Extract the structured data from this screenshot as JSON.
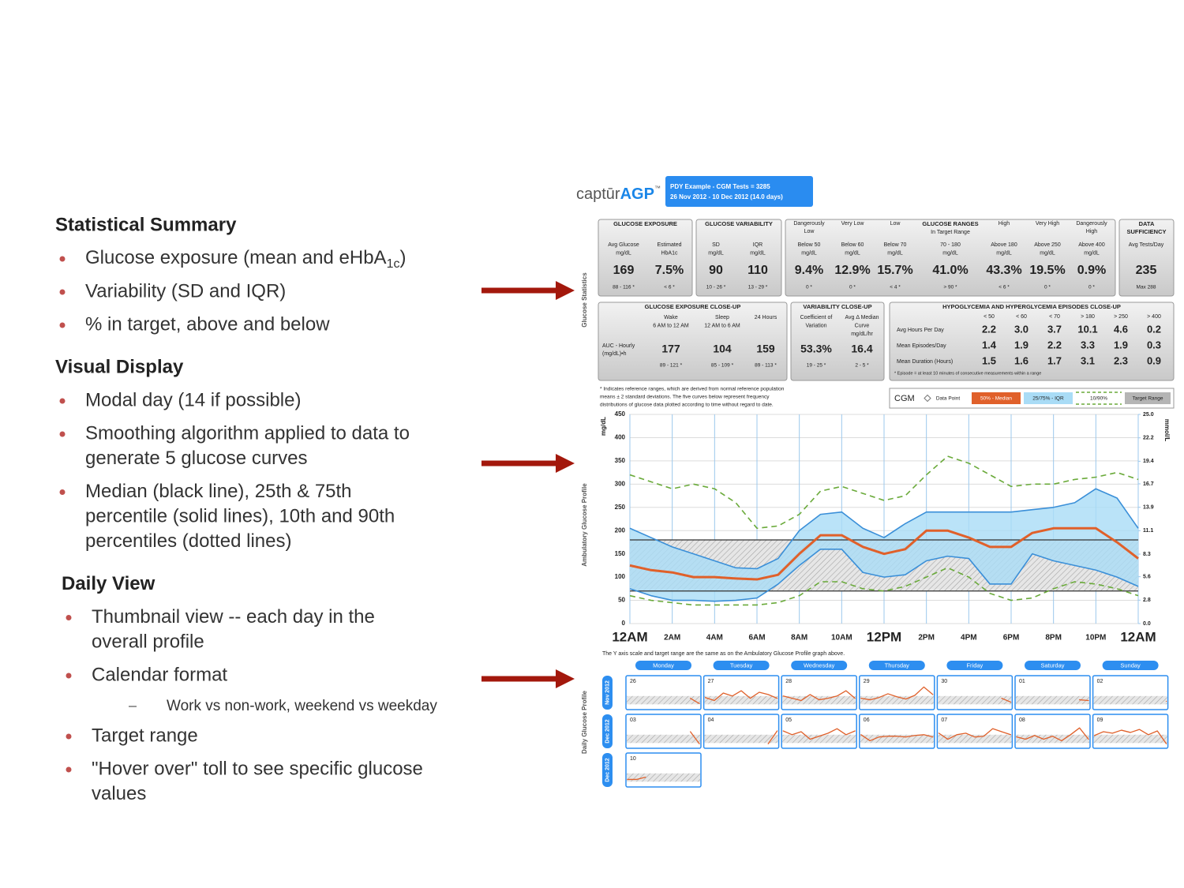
{
  "slide": {
    "sections": [
      {
        "heading": "Statistical Summary",
        "items": [
          {
            "lines": [
              "Glucose exposure (mean and eHbA"
            ],
            "sub": "1c",
            "tail": ")"
          },
          {
            "lines": [
              "Variability (SD and IQR)"
            ]
          },
          {
            "lines": [
              "% in target, above and below"
            ]
          }
        ]
      },
      {
        "heading": "Visual Display",
        "items": [
          {
            "lines": [
              "Modal day (14 if possible)"
            ]
          },
          {
            "lines": [
              "Smoothing algorithm applied to data to",
              "generate 5 glucose curves"
            ]
          },
          {
            "lines": [
              "Median (black line), 25th & 75th",
              "percentile (solid lines), 10th and 90th",
              "percentiles (dotted lines)"
            ]
          }
        ]
      },
      {
        "heading": "Daily View",
        "items": [
          {
            "lines": [
              "Thumbnail view -- each day in the",
              "overall profile"
            ]
          },
          {
            "lines": [
              "Calendar format"
            ],
            "subitems": [
              "Work vs non-work, weekend vs weekday"
            ]
          },
          {
            "lines": [
              "Target range"
            ]
          },
          {
            "lines": [
              "\"Hover over\" toll to see specific glucose",
              "values"
            ]
          }
        ]
      }
    ]
  },
  "report": {
    "logo": {
      "text": "captūr",
      "brand": "AGP",
      "tm": "™"
    },
    "header_box": [
      "PDY Example - CGM Tests = 3285",
      "26 Nov 2012 - 10 Dec 2012 (14.0 days)"
    ],
    "side_labels": [
      "Glucose Statistics",
      "Ambulatory Glucose Profile",
      "Daily Glucose Profile"
    ],
    "stats_row1": [
      {
        "title": [
          "GLUCOSE EXPOSURE"
        ],
        "columns": [
          {
            "label": [
              "Avg Glucose",
              "mg/dL"
            ],
            "value": "169",
            "range": "88 - 116 *"
          },
          {
            "label": [
              "Estimated",
              "HbA1c"
            ],
            "value": "7.5%",
            "range": "< 6 *"
          }
        ]
      },
      {
        "title": [
          "GLUCOSE VARIABILITY"
        ],
        "columns": [
          {
            "label": [
              "SD",
              "mg/dL"
            ],
            "value": "90",
            "range": "10 - 26 *"
          },
          {
            "label": [
              "IQR",
              "mg/dL"
            ],
            "value": "110",
            "range": "13 - 29 *"
          }
        ]
      },
      {
        "title": [
          "GLUCOSE RANGES"
        ],
        "columns": [
          {
            "top": [
              "Dangerously",
              "Low"
            ],
            "label": [
              "Below 50",
              "mg/dL"
            ],
            "value": "9.4%",
            "range": "0 *"
          },
          {
            "top": [
              "Very Low"
            ],
            "label": [
              "Below 60",
              "mg/dL"
            ],
            "value": "12.9%",
            "range": "0 *"
          },
          {
            "top": [
              "Low"
            ],
            "label": [
              "Below 70",
              "mg/dL"
            ],
            "value": "15.7%",
            "range": "< 4 *"
          },
          {
            "top": [
              "In Target Range"
            ],
            "label": [
              "70 - 180",
              "mg/dL"
            ],
            "value": "41.0%",
            "range": "> 90 *"
          },
          {
            "top": [
              "High"
            ],
            "label": [
              "Above 180",
              "mg/dL"
            ],
            "value": "43.3%",
            "range": "< 6 *"
          },
          {
            "top": [
              "Very High"
            ],
            "label": [
              "Above 250",
              "mg/dL"
            ],
            "value": "19.5%",
            "range": "0 *"
          },
          {
            "top": [
              "Dangerously",
              "High"
            ],
            "label": [
              "Above 400",
              "mg/dL"
            ],
            "value": "0.9%",
            "range": "0 *"
          }
        ]
      },
      {
        "title": [
          "DATA",
          "SUFFICIENCY"
        ],
        "columns": [
          {
            "label": [
              "Avg Tests/Day"
            ],
            "value": "235",
            "range": "Max 288"
          }
        ]
      }
    ],
    "stats_row2": [
      {
        "title": [
          "GLUCOSE EXPOSURE CLOSE-UP"
        ],
        "row_label": [
          "AUC - Hourly",
          "(mg/dL)•h"
        ],
        "columns": [
          {
            "label": [
              "Wake",
              "6 AM to 12 AM"
            ],
            "value": "177",
            "range": "89 - 121 *"
          },
          {
            "label": [
              "Sleep",
              "12 AM to 6 AM"
            ],
            "value": "104",
            "range": "85 - 109 *"
          },
          {
            "label": [
              "24 Hours"
            ],
            "value": "159",
            "range": "89 - 113 *"
          }
        ]
      },
      {
        "title": [
          "VARIABILITY CLOSE-UP"
        ],
        "columns": [
          {
            "label": [
              "Coefficient of",
              "Variation"
            ],
            "value": "53.3%",
            "range": "19 - 25 *"
          },
          {
            "label": [
              "Avg Δ Median",
              "Curve",
              "mg/dL/hr"
            ],
            "value": "16.4",
            "range": "2 - 5 *"
          }
        ]
      }
    ],
    "episodes": {
      "title": [
        "HYPOGLYCEMIA AND HYPERGLYCEMIA EPISODES CLOSE-UP"
      ],
      "headers": [
        "< 50",
        "< 60",
        "< 70",
        "> 180",
        "> 250",
        "> 400"
      ],
      "rows": [
        {
          "label": "Avg Hours Per Day",
          "values": [
            "2.2",
            "3.0",
            "3.7",
            "10.1",
            "4.6",
            "0.2"
          ]
        },
        {
          "label": "Mean Episodes/Day",
          "values": [
            "1.4",
            "1.9",
            "2.2",
            "3.3",
            "1.9",
            "0.3"
          ]
        },
        {
          "label": "Mean Duration (Hours)",
          "values": [
            "1.5",
            "1.6",
            "1.7",
            "3.1",
            "2.3",
            "0.9"
          ]
        }
      ],
      "footnote": "* Episode = at least 10 minutes of consecutive measurements within a range"
    },
    "note": [
      "* Indicates reference ranges, which are derived from normal reference population",
      "means ± 2 standard deviations. The five curves below represent frequency",
      "distributions of glucose data plotted according to time without regard to date."
    ],
    "legend": {
      "title": "CGM",
      "items": [
        "Data Point",
        "50% - Median",
        "25/75% - IQR",
        "10/90%",
        "Target Range"
      ]
    },
    "daily_view": {
      "caption": "The Y axis scale and target range are the same as on the Ambulatory Glucose Profile graph above.",
      "weekdays": [
        "Monday",
        "Tuesday",
        "Wednesday",
        "Thursday",
        "Friday",
        "Saturday",
        "Sunday"
      ],
      "weeks": [
        {
          "month": "Nov 2012",
          "days": [
            {
              "date": "26",
              "values": [
                null,
                null,
                null,
                null,
                null,
                null,
                null,
                150,
                80
              ]
            },
            {
              "date": "27",
              "values": [
                160,
                120,
                220,
                180,
                250,
                150,
                230,
                200,
                150
              ]
            },
            {
              "date": "28",
              "values": [
                180,
                150,
                120,
                200,
                130,
                150,
                180,
                250,
                150
              ]
            },
            {
              "date": "29",
              "values": [
                150,
                130,
                160,
                210,
                170,
                140,
                190,
                300,
                200
              ]
            },
            {
              "date": "30",
              "values": [
                null,
                null,
                null,
                null,
                null,
                null,
                null,
                150,
                100
              ]
            },
            {
              "date": "01",
              "values": [
                null,
                null,
                null,
                null,
                null,
                null,
                null,
                130,
                120
              ]
            },
            {
              "date": "02",
              "values": [
                null,
                null,
                null,
                null,
                null,
                null,
                null,
                null,
                110
              ]
            }
          ]
        },
        {
          "month": "Dec 2012",
          "days": [
            {
              "date": "03",
              "values": [
                null,
                null,
                null,
                null,
                null,
                null,
                null,
                220,
                60
              ]
            },
            {
              "date": "04",
              "values": [
                null,
                null,
                null,
                null,
                null,
                null,
                null,
                60,
                230
              ]
            },
            {
              "date": "05",
              "values": [
                230,
                180,
                220,
                120,
                160,
                200,
                260,
                180,
                230
              ]
            },
            {
              "date": "06",
              "values": [
                180,
                100,
                150,
                160,
                160,
                150,
                170,
                180,
                150
              ]
            },
            {
              "date": "07",
              "values": [
                200,
                120,
                180,
                200,
                150,
                160,
                260,
                220,
                180
              ]
            },
            {
              "date": "08",
              "values": [
                150,
                120,
                170,
                120,
                160,
                100,
                180,
                270,
                120
              ]
            },
            {
              "date": "09",
              "values": [
                170,
                220,
                200,
                240,
                210,
                250,
                180,
                230,
                60
              ]
            }
          ]
        },
        {
          "month": "Dec 2012",
          "days": [
            {
              "date": "10",
              "values": [
                100,
                100,
                130,
                null,
                null,
                null,
                null,
                null,
                null
              ]
            }
          ]
        }
      ]
    }
  },
  "chart_data": {
    "type": "line",
    "y_label": "mg/dL",
    "y2_label": "mmol/L",
    "x": [
      0,
      1,
      2,
      3,
      4,
      5,
      6,
      7,
      8,
      9,
      10,
      11,
      12,
      13,
      14,
      15,
      16,
      17,
      18,
      19,
      20,
      21,
      22,
      23,
      24
    ],
    "xlim": [
      0,
      24
    ],
    "xticks": [
      {
        "value": 0,
        "label": "12AM"
      },
      {
        "value": 2,
        "label": "2AM"
      },
      {
        "value": 4,
        "label": "4AM"
      },
      {
        "value": 6,
        "label": "6AM"
      },
      {
        "value": 8,
        "label": "8AM"
      },
      {
        "value": 10,
        "label": "10AM"
      },
      {
        "value": 12,
        "label": "12PM"
      },
      {
        "value": 14,
        "label": "2PM"
      },
      {
        "value": 16,
        "label": "4PM"
      },
      {
        "value": 18,
        "label": "6PM"
      },
      {
        "value": 20,
        "label": "8PM"
      },
      {
        "value": 22,
        "label": "10PM"
      },
      {
        "value": 24,
        "label": "12AM"
      }
    ],
    "ylim": [
      0,
      450
    ],
    "yticks": [
      0,
      50,
      100,
      150,
      200,
      250,
      300,
      350,
      400,
      450
    ],
    "y2lim": [
      0,
      25
    ],
    "y2ticks": [
      {
        "value": 0,
        "label": "0.0"
      },
      2.8,
      5.6,
      8.3,
      11.1,
      13.9,
      16.7,
      19.4,
      22.2,
      {
        "value": 25,
        "label": "25.0"
      }
    ],
    "target_range": [
      70,
      180
    ],
    "grid": true,
    "series": [
      {
        "color": "#6aaa3a",
        "dash": true,
        "values": [
          60,
          50,
          45,
          40,
          40,
          40,
          40,
          45,
          60,
          90,
          90,
          75,
          70,
          80,
          100,
          120,
          100,
          65,
          50,
          55,
          75,
          90,
          85,
          75,
          60
        ]
      },
      {
        "color": "#3a8fd8",
        "values": [
          75,
          60,
          50,
          50,
          48,
          50,
          55,
          85,
          125,
          160,
          160,
          110,
          100,
          105,
          135,
          145,
          140,
          85,
          85,
          150,
          135,
          125,
          115,
          100,
          80
        ]
      },
      {
        "color": "#e0602a",
        "values": [
          125,
          115,
          110,
          100,
          100,
          97,
          95,
          105,
          150,
          190,
          190,
          165,
          150,
          160,
          200,
          200,
          185,
          165,
          165,
          195,
          205,
          205,
          205,
          175,
          140
        ]
      },
      {
        "color": "#3a8fd8",
        "fill": "#a9dcf6",
        "fill_to": 1,
        "values": [
          205,
          185,
          165,
          150,
          135,
          120,
          118,
          140,
          200,
          235,
          240,
          205,
          185,
          215,
          240,
          240,
          240,
          240,
          240,
          245,
          250,
          260,
          290,
          270,
          205
        ]
      },
      {
        "color": "#6aaa3a",
        "dash": true,
        "values": [
          320,
          305,
          290,
          300,
          290,
          260,
          205,
          210,
          235,
          285,
          295,
          280,
          265,
          275,
          320,
          360,
          345,
          320,
          295,
          300,
          300,
          310,
          315,
          325,
          310
        ]
      }
    ]
  }
}
